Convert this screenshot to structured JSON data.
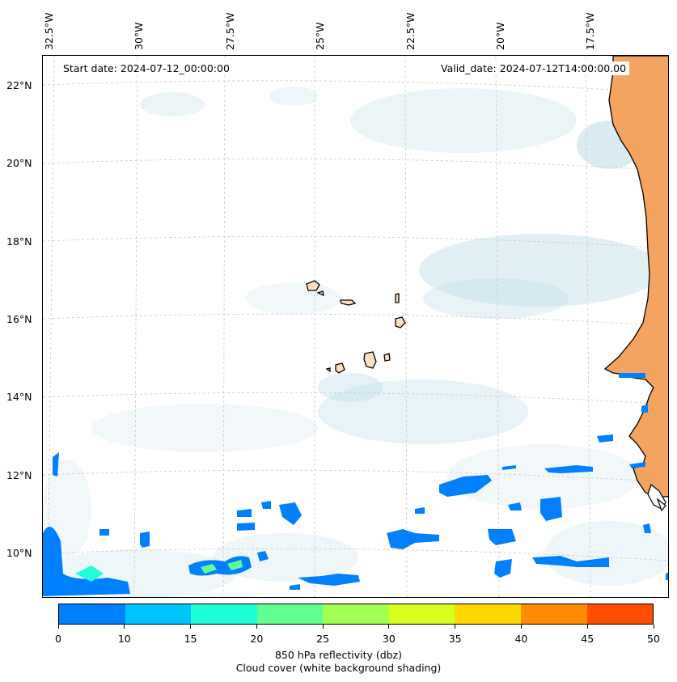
{
  "map": {
    "start_date_label": "Start date: 2024-07-12_00:00:00",
    "valid_date_label": "Valid_date: 2024-07-12T14:00:00.00",
    "lon_labels": [
      "32.5°W",
      "30°W",
      "27.5°W",
      "25°W",
      "22.5°W",
      "20°W",
      "17.5°W"
    ],
    "lat_labels": [
      "22°N",
      "20°N",
      "18°N",
      "16°N",
      "14°N",
      "12°N",
      "10°N"
    ],
    "land_color": "#f4a460",
    "coastline_color": "#000000",
    "cloud_shading_color": "#bcdde8",
    "gridlines": "dashed-gray"
  },
  "colorbar": {
    "title_line1": "850 hPa reflectivity (dbz)",
    "title_line2": "Cloud cover (white background shading)",
    "ticks": [
      "0",
      "10",
      "15",
      "20",
      "25",
      "30",
      "35",
      "40",
      "45",
      "50"
    ],
    "colors": [
      "#0080ff",
      "#00c4ff",
      "#20ffd8",
      "#60ff90",
      "#a0ff50",
      "#d8ff20",
      "#ffd800",
      "#ff8c00",
      "#ff4c00"
    ]
  }
}
